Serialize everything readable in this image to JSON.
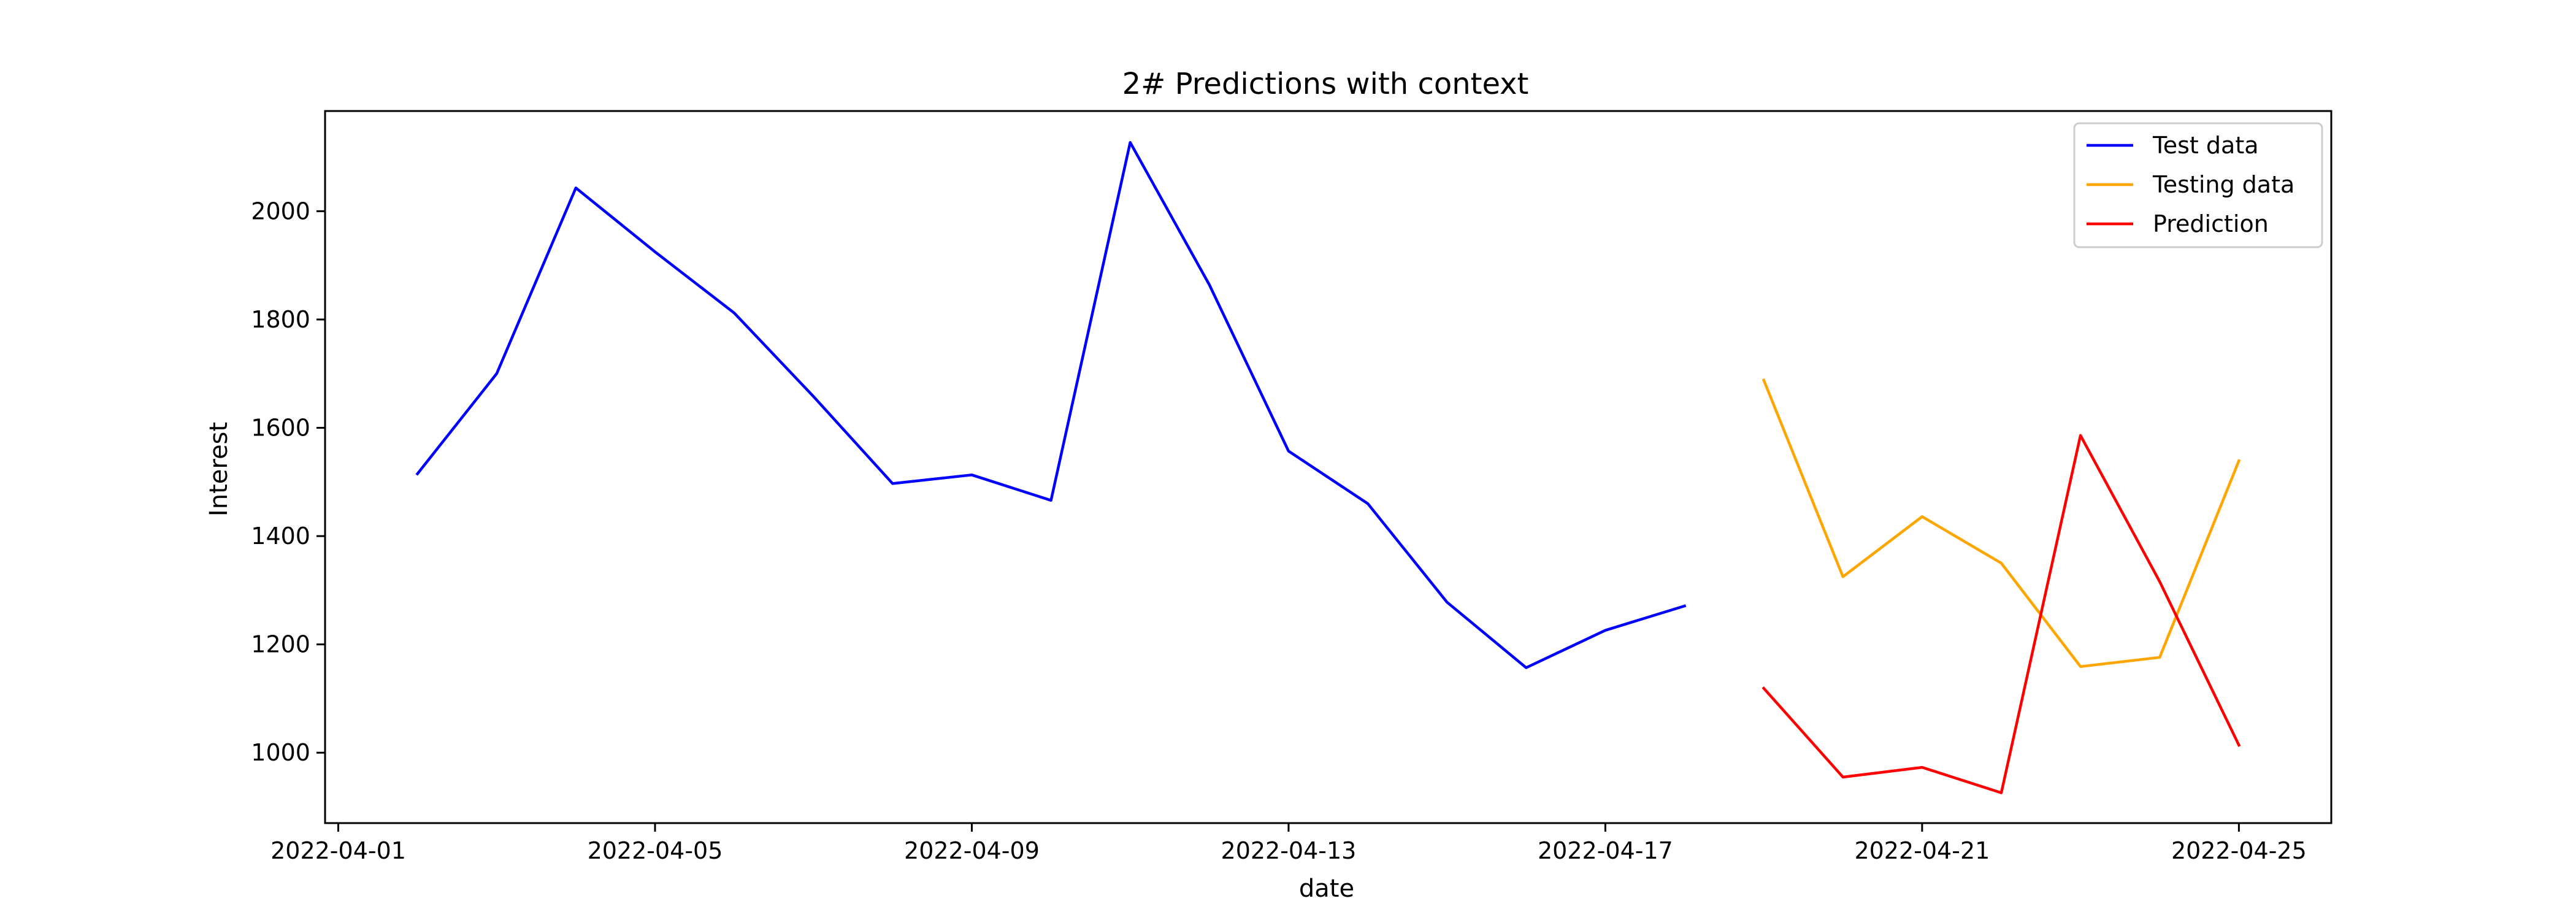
{
  "chart_data": {
    "type": "line",
    "title": "2# Predictions with context",
    "xlabel": "date",
    "ylabel": "Interest",
    "xlim": [
      "2022-03-31T20:00",
      "2022-04-26T04:00"
    ],
    "ylim": [
      870,
      2185
    ],
    "x_ticks": [
      "2022-04-01",
      "2022-04-05",
      "2022-04-09",
      "2022-04-13",
      "2022-04-17",
      "2022-04-21",
      "2022-04-25"
    ],
    "y_ticks": [
      1000,
      1200,
      1400,
      1600,
      1800,
      2000
    ],
    "grid": false,
    "legend_position": "top-right",
    "series": [
      {
        "name": "Test data",
        "color": "#0000ff",
        "x": [
          "2022-04-02",
          "2022-04-03",
          "2022-04-04",
          "2022-04-05",
          "2022-04-06",
          "2022-04-07",
          "2022-04-08",
          "2022-04-09",
          "2022-04-10",
          "2022-04-11",
          "2022-04-12",
          "2022-04-13",
          "2022-04-14",
          "2022-04-15",
          "2022-04-16",
          "2022-04-17",
          "2022-04-18"
        ],
        "values": [
          1515,
          1700,
          2043,
          1925,
          1812,
          1658,
          1497,
          1513,
          1466,
          2127,
          1864,
          1557,
          1460,
          1278,
          1157,
          1226,
          1271
        ]
      },
      {
        "name": "Testing data",
        "color": "#ffa500",
        "x": [
          "2022-04-19",
          "2022-04-20",
          "2022-04-21",
          "2022-04-22",
          "2022-04-23",
          "2022-04-24",
          "2022-04-25"
        ],
        "values": [
          1688,
          1325,
          1436,
          1350,
          1159,
          1176,
          1539
        ]
      },
      {
        "name": "Prediction",
        "color": "#ff0000",
        "x": [
          "2022-04-19",
          "2022-04-20",
          "2022-04-21",
          "2022-04-22",
          "2022-04-23",
          "2022-04-24",
          "2022-04-25"
        ],
        "values": [
          1119,
          955,
          973,
          926,
          1586,
          1316,
          1014
        ]
      }
    ]
  }
}
